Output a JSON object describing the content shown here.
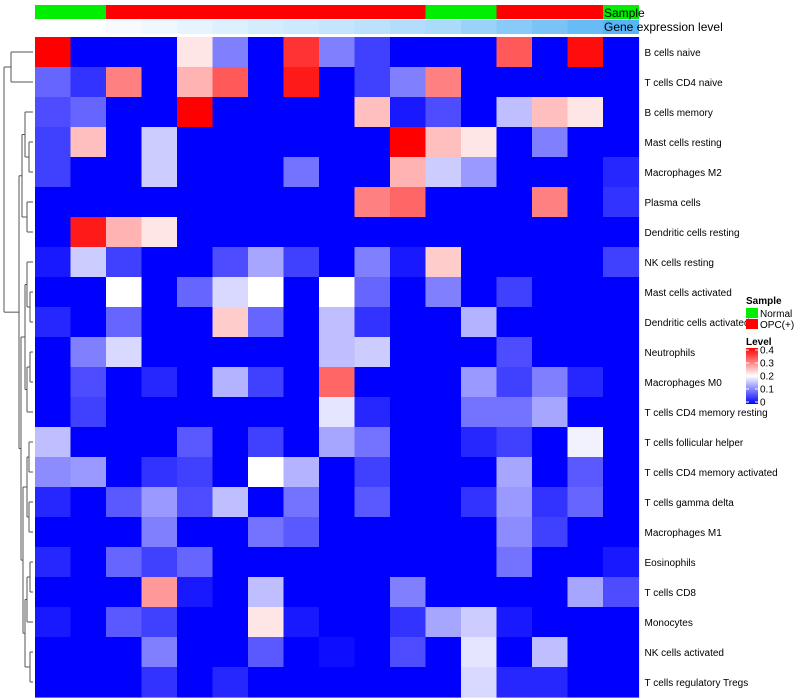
{
  "chart_data": {
    "type": "heatmap",
    "annotations": {
      "sample_label": "Sample",
      "expression_label": "Gene expression level",
      "sample_groups": [
        "Normal",
        "Normal",
        "OPC(+)",
        "OPC(+)",
        "OPC(+)",
        "OPC(+)",
        "OPC(+)",
        "OPC(+)",
        "OPC(+)",
        "OPC(+)",
        "OPC(+)",
        "Normal",
        "Normal",
        "OPC(+)",
        "OPC(+)",
        "OPC(+)",
        "Normal"
      ],
      "expression_levels": [
        0.0,
        0.0,
        0.05,
        0.1,
        0.15,
        0.2,
        0.25,
        0.3,
        0.35,
        0.4,
        0.45,
        0.5,
        0.6,
        0.7,
        0.8,
        0.9,
        1.0
      ]
    },
    "rows": [
      "B cells naive",
      "T cells CD4 naive",
      "B cells memory",
      "Mast cells resting",
      "Macrophages M2",
      "Plasma cells",
      "Dendritic cells resting",
      "NK cells resting",
      "Mast cells activated",
      "Dendritic cells activated",
      "Neutrophils",
      "Macrophages M0",
      "T cells CD4 memory resting",
      "T cells follicular helper",
      "T cells CD4 memory activated",
      "T cells gamma delta",
      "Macrophages M1",
      "Eosinophils",
      "T cells CD8",
      "Monocytes",
      "NK cells activated",
      "T cells regulatory  Tregs"
    ],
    "values": [
      [
        0.4,
        0.0,
        0.0,
        0.0,
        0.22,
        0.1,
        0.0,
        0.36,
        0.1,
        0.05,
        0.0,
        0.0,
        0.0,
        0.33,
        0.0,
        0.39,
        0.0
      ],
      [
        0.08,
        0.04,
        0.3,
        0.0,
        0.26,
        0.33,
        0.0,
        0.38,
        0.0,
        0.05,
        0.1,
        0.3,
        0.0,
        0.0,
        0.0,
        0.0,
        0.0
      ],
      [
        0.06,
        0.08,
        0.0,
        0.0,
        0.4,
        0.0,
        0.0,
        0.0,
        0.0,
        0.25,
        0.02,
        0.06,
        0.0,
        0.15,
        0.25,
        0.22,
        0.0
      ],
      [
        0.05,
        0.25,
        0.0,
        0.16,
        0.0,
        0.0,
        0.0,
        0.0,
        0.0,
        0.0,
        0.4,
        0.25,
        0.22,
        0.0,
        0.1,
        0.0,
        0.0
      ],
      [
        0.05,
        0.0,
        0.0,
        0.16,
        0.0,
        0.0,
        0.0,
        0.09,
        0.0,
        0.0,
        0.26,
        0.16,
        0.12,
        0.0,
        0.0,
        0.0,
        0.03
      ],
      [
        0.0,
        0.0,
        0.0,
        0.0,
        0.0,
        0.0,
        0.0,
        0.0,
        0.0,
        0.3,
        0.32,
        0.0,
        0.0,
        0.0,
        0.3,
        0.0,
        0.04
      ],
      [
        0.0,
        0.38,
        0.26,
        0.22,
        0.0,
        0.0,
        0.0,
        0.0,
        0.0,
        0.0,
        0.0,
        0.0,
        0.0,
        0.0,
        0.0,
        0.0,
        0.0
      ],
      [
        0.02,
        0.16,
        0.05,
        0.0,
        0.0,
        0.06,
        0.13,
        0.05,
        0.0,
        0.1,
        0.02,
        0.24,
        0.0,
        0.0,
        0.0,
        0.0,
        0.05
      ],
      [
        0.0,
        0.0,
        0.2,
        0.0,
        0.08,
        0.17,
        0.2,
        0.0,
        0.2,
        0.08,
        0.0,
        0.1,
        0.0,
        0.05,
        0.0,
        0.0,
        0.0
      ],
      [
        0.03,
        0.0,
        0.08,
        0.0,
        0.0,
        0.24,
        0.08,
        0.0,
        0.15,
        0.04,
        0.0,
        0.0,
        0.14,
        0.0,
        0.0,
        0.0,
        0.0
      ],
      [
        0.0,
        0.1,
        0.17,
        0.0,
        0.0,
        0.0,
        0.0,
        0.0,
        0.15,
        0.16,
        0.0,
        0.0,
        0.0,
        0.06,
        0.0,
        0.0,
        0.0
      ],
      [
        0.0,
        0.06,
        0.0,
        0.03,
        0.0,
        0.14,
        0.05,
        0.0,
        0.32,
        0.0,
        0.0,
        0.0,
        0.12,
        0.05,
        0.1,
        0.03,
        0.0
      ],
      [
        0.0,
        0.05,
        0.0,
        0.0,
        0.0,
        0.0,
        0.0,
        0.0,
        0.18,
        0.03,
        0.0,
        0.0,
        0.09,
        0.09,
        0.13,
        0.0,
        0.0
      ],
      [
        0.15,
        0.0,
        0.0,
        0.0,
        0.07,
        0.0,
        0.05,
        0.0,
        0.13,
        0.09,
        0.0,
        0.0,
        0.03,
        0.05,
        0.0,
        0.19,
        0.0
      ],
      [
        0.11,
        0.12,
        0.0,
        0.04,
        0.05,
        0.0,
        0.2,
        0.14,
        0.0,
        0.05,
        0.0,
        0.0,
        0.0,
        0.13,
        0.0,
        0.07,
        0.0
      ],
      [
        0.03,
        0.0,
        0.07,
        0.12,
        0.06,
        0.15,
        0.0,
        0.09,
        0.0,
        0.07,
        0.0,
        0.0,
        0.04,
        0.12,
        0.04,
        0.08,
        0.0
      ],
      [
        0.0,
        0.0,
        0.0,
        0.1,
        0.0,
        0.0,
        0.09,
        0.07,
        0.0,
        0.0,
        0.0,
        0.0,
        0.0,
        0.11,
        0.05,
        0.0,
        0.0
      ],
      [
        0.03,
        0.0,
        0.08,
        0.05,
        0.08,
        0.0,
        0.0,
        0.0,
        0.0,
        0.0,
        0.0,
        0.0,
        0.0,
        0.09,
        0.0,
        0.0,
        0.02
      ],
      [
        0.0,
        0.0,
        0.0,
        0.28,
        0.02,
        0.0,
        0.15,
        0.0,
        0.0,
        0.0,
        0.1,
        0.0,
        0.0,
        0.0,
        0.0,
        0.13,
        0.06
      ],
      [
        0.02,
        0.0,
        0.07,
        0.05,
        0.0,
        0.0,
        0.22,
        0.02,
        0.0,
        0.0,
        0.04,
        0.13,
        0.16,
        0.02,
        0.0,
        0.0,
        0.0
      ],
      [
        0.0,
        0.0,
        0.0,
        0.1,
        0.0,
        0.0,
        0.07,
        0.0,
        0.01,
        0.0,
        0.06,
        0.0,
        0.18,
        0.0,
        0.15,
        0.0,
        0.0
      ],
      [
        0.0,
        0.0,
        0.0,
        0.04,
        0.0,
        0.03,
        0.0,
        0.0,
        0.0,
        0.0,
        0.0,
        0.0,
        0.17,
        0.03,
        0.03,
        0.0,
        0.0
      ]
    ],
    "color_scale": {
      "min": 0,
      "mid": 0.2,
      "max": 0.4,
      "low": "#0000ff",
      "midcolor": "#ffffff",
      "high": "#ff0000"
    },
    "legend": {
      "sample_title": "Sample",
      "sample_entries": [
        {
          "label": "Normal",
          "color": "#00ee00"
        },
        {
          "label": "OPC(+)",
          "color": "#ff0000"
        }
      ],
      "level_title": "Level",
      "level_ticks": [
        "0.4",
        "0.3",
        "0.2",
        "0.1",
        "0"
      ],
      "placement": "right"
    }
  }
}
